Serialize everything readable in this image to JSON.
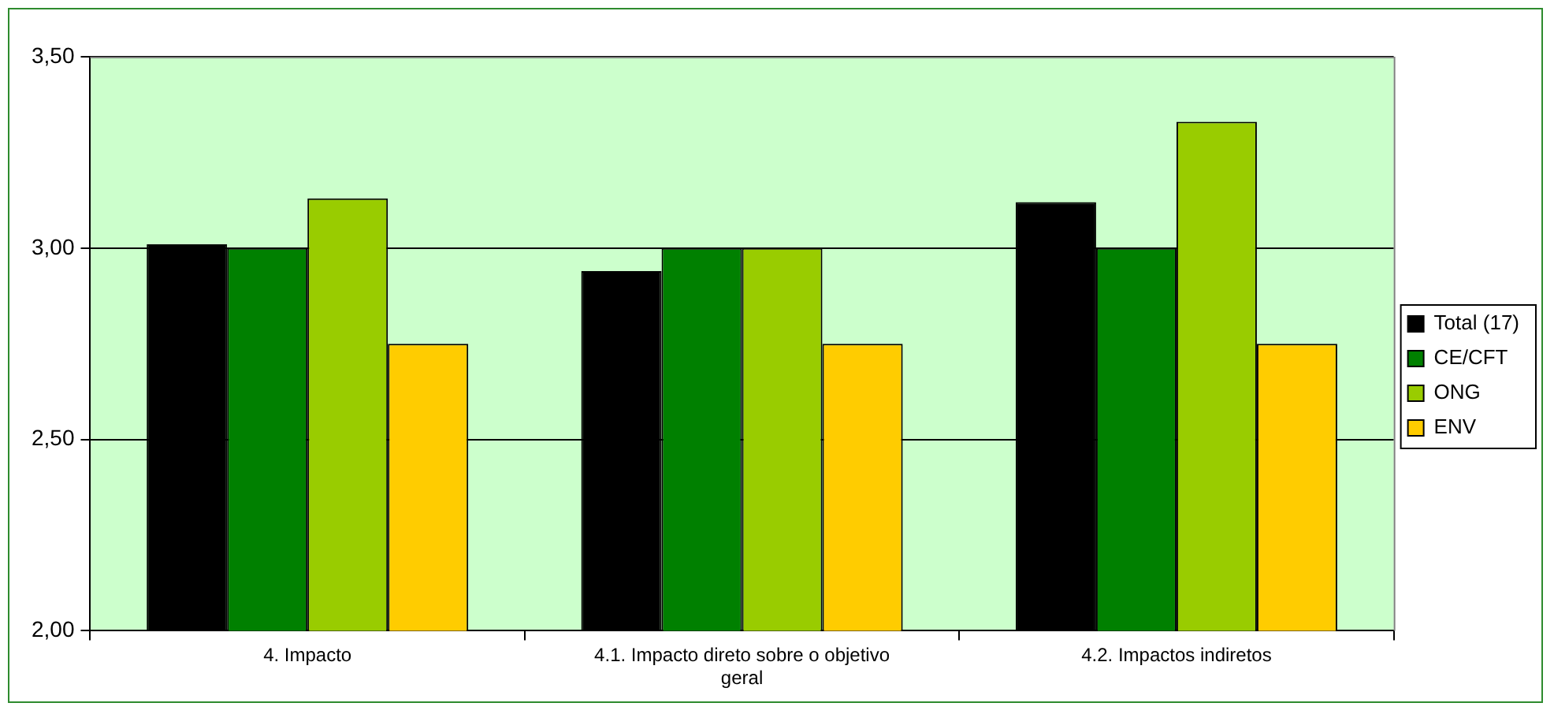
{
  "chart_data": {
    "type": "bar",
    "categories": [
      "4. Impacto",
      "4.1. Impacto direto sobre o objetivo geral",
      "4.2. Impactos indiretos"
    ],
    "series": [
      {
        "name": "Total (17)",
        "color": "#000000",
        "values": [
          3.01,
          2.94,
          3.12
        ]
      },
      {
        "name": "CE/CFT",
        "color": "#008000",
        "values": [
          3.0,
          3.0,
          3.0
        ]
      },
      {
        "name": "ONG",
        "color": "#99cc00",
        "values": [
          3.13,
          3.0,
          3.33
        ]
      },
      {
        "name": "ENV",
        "color": "#ffcc00",
        "values": [
          2.75,
          2.75,
          2.75
        ]
      }
    ],
    "ylim": [
      2.0,
      3.5
    ],
    "yticks": [
      {
        "value": 2.0,
        "label": "2,00"
      },
      {
        "value": 2.5,
        "label": "2,50"
      },
      {
        "value": 3.0,
        "label": "3,00"
      },
      {
        "value": 3.5,
        "label": "3,50"
      }
    ],
    "grid": "y",
    "legend": "right"
  }
}
